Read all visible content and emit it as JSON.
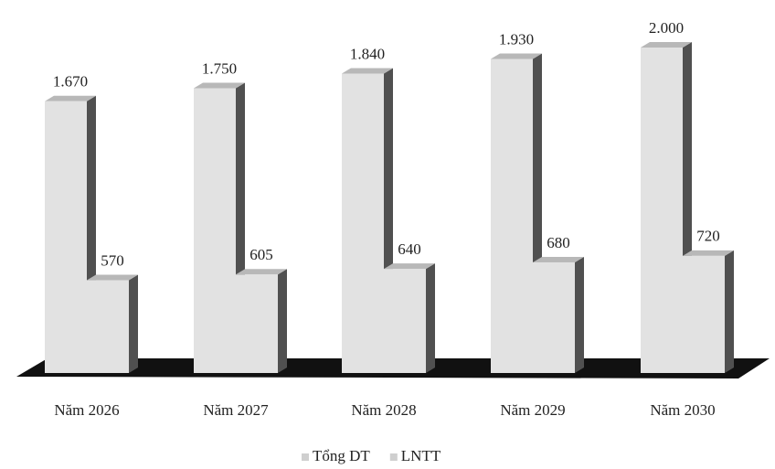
{
  "chart_data": {
    "type": "bar3d",
    "categories": [
      "Năm 2026",
      "Năm 2027",
      "Năm 2028",
      "Năm 2029",
      "Năm 2030"
    ],
    "series": [
      {
        "name": "Tổng DT",
        "color": "#e2e2e2",
        "values": [
          1670,
          1750,
          1840,
          1930,
          2000
        ],
        "value_labels": [
          "1.670",
          "1.750",
          "1.840",
          "1.930",
          "2.000"
        ]
      },
      {
        "name": "LNTT",
        "color": "#e2e2e2",
        "values": [
          570,
          605,
          640,
          680,
          720
        ]
      }
    ]
  }
}
